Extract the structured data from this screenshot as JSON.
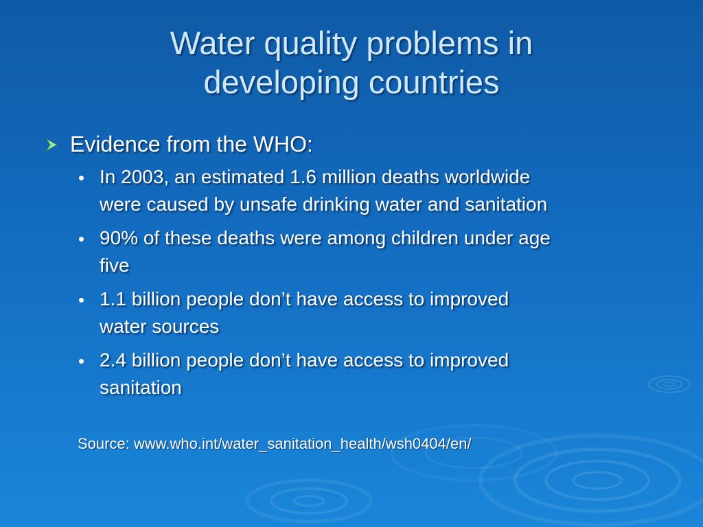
{
  "slide": {
    "title_lines": [
      "Water quality problems in",
      "developing countries"
    ],
    "heading": "Evidence from the WHO:",
    "bullets": [
      {
        "lines": [
          "In 2003, an estimated 1.6 million deaths worldwide",
          "were caused by unsafe drinking water and sanitation"
        ]
      },
      {
        "lines": [
          "90% of these deaths were among children under age",
          "five"
        ]
      },
      {
        "lines": [
          "1.1 billion people don’t have access to improved",
          "water sources"
        ]
      },
      {
        "lines": [
          "2.4 billion people don’t have access to improved",
          "sanitation"
        ]
      }
    ],
    "source": "Source: www.who.int/water_sanitation_health/wsh0404/en/"
  },
  "icons": {
    "heading_bullet": "arrow-right-icon",
    "sub_bullet": "dot-icon",
    "background": "water-ripple-decoration"
  },
  "colors": {
    "background_top": "#0f5aa6",
    "background_bottom": "#1a86d9",
    "title": "#cfe8fb",
    "body_text": "#ffffff",
    "arrow": "#9be6a8"
  }
}
